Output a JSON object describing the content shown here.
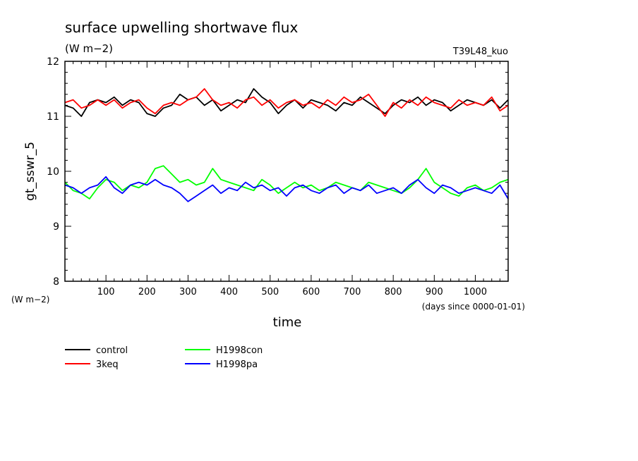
{
  "chart_data": {
    "type": "line",
    "title": "surface upwelling shortwave flux",
    "title_units": "(W m−2)",
    "run_label": "T39L48_kuo",
    "ylabel": "gt_sswr_5",
    "y_unit_label": "(W m−2)",
    "xlabel": "time",
    "x_unit_label": "(days since 0000-01-01)",
    "xlim": [
      0,
      1080
    ],
    "ylim": [
      8,
      12
    ],
    "x_ticks": [
      100,
      200,
      300,
      400,
      500,
      600,
      700,
      800,
      900,
      1000
    ],
    "y_ticks": [
      8,
      9,
      10,
      11,
      12
    ],
    "grid": false,
    "legend_position": "bottom-left",
    "series": [
      {
        "name": "control",
        "color": "#000000",
        "points": [
          [
            0,
            11.2
          ],
          [
            20,
            11.15
          ],
          [
            40,
            11.0
          ],
          [
            60,
            11.25
          ],
          [
            80,
            11.3
          ],
          [
            100,
            11.25
          ],
          [
            120,
            11.35
          ],
          [
            140,
            11.2
          ],
          [
            160,
            11.3
          ],
          [
            180,
            11.25
          ],
          [
            200,
            11.05
          ],
          [
            220,
            11.0
          ],
          [
            240,
            11.15
          ],
          [
            260,
            11.2
          ],
          [
            280,
            11.4
          ],
          [
            300,
            11.3
          ],
          [
            320,
            11.35
          ],
          [
            340,
            11.2
          ],
          [
            360,
            11.3
          ],
          [
            380,
            11.1
          ],
          [
            400,
            11.2
          ],
          [
            420,
            11.3
          ],
          [
            440,
            11.25
          ],
          [
            460,
            11.5
          ],
          [
            480,
            11.35
          ],
          [
            500,
            11.25
          ],
          [
            520,
            11.05
          ],
          [
            540,
            11.2
          ],
          [
            560,
            11.3
          ],
          [
            580,
            11.15
          ],
          [
            600,
            11.3
          ],
          [
            620,
            11.25
          ],
          [
            640,
            11.2
          ],
          [
            660,
            11.1
          ],
          [
            680,
            11.25
          ],
          [
            700,
            11.2
          ],
          [
            720,
            11.35
          ],
          [
            740,
            11.25
          ],
          [
            760,
            11.15
          ],
          [
            780,
            11.05
          ],
          [
            800,
            11.2
          ],
          [
            820,
            11.3
          ],
          [
            840,
            11.25
          ],
          [
            860,
            11.35
          ],
          [
            880,
            11.2
          ],
          [
            900,
            11.3
          ],
          [
            920,
            11.25
          ],
          [
            940,
            11.1
          ],
          [
            960,
            11.2
          ],
          [
            980,
            11.3
          ],
          [
            1000,
            11.25
          ],
          [
            1020,
            11.2
          ],
          [
            1040,
            11.3
          ],
          [
            1060,
            11.15
          ],
          [
            1080,
            11.3
          ]
        ]
      },
      {
        "name": "3keq",
        "color": "#ff0000",
        "points": [
          [
            0,
            11.25
          ],
          [
            20,
            11.3
          ],
          [
            40,
            11.15
          ],
          [
            60,
            11.2
          ],
          [
            80,
            11.3
          ],
          [
            100,
            11.2
          ],
          [
            120,
            11.3
          ],
          [
            140,
            11.15
          ],
          [
            160,
            11.25
          ],
          [
            180,
            11.3
          ],
          [
            200,
            11.15
          ],
          [
            220,
            11.05
          ],
          [
            240,
            11.2
          ],
          [
            260,
            11.25
          ],
          [
            280,
            11.2
          ],
          [
            300,
            11.3
          ],
          [
            320,
            11.35
          ],
          [
            340,
            11.5
          ],
          [
            360,
            11.3
          ],
          [
            380,
            11.2
          ],
          [
            400,
            11.25
          ],
          [
            420,
            11.15
          ],
          [
            440,
            11.3
          ],
          [
            460,
            11.35
          ],
          [
            480,
            11.2
          ],
          [
            500,
            11.3
          ],
          [
            520,
            11.15
          ],
          [
            540,
            11.25
          ],
          [
            560,
            11.3
          ],
          [
            580,
            11.2
          ],
          [
            600,
            11.25
          ],
          [
            620,
            11.15
          ],
          [
            640,
            11.3
          ],
          [
            660,
            11.2
          ],
          [
            680,
            11.35
          ],
          [
            700,
            11.25
          ],
          [
            720,
            11.3
          ],
          [
            740,
            11.4
          ],
          [
            760,
            11.2
          ],
          [
            780,
            11.0
          ],
          [
            800,
            11.25
          ],
          [
            820,
            11.15
          ],
          [
            840,
            11.3
          ],
          [
            860,
            11.2
          ],
          [
            880,
            11.35
          ],
          [
            900,
            11.25
          ],
          [
            920,
            11.2
          ],
          [
            940,
            11.15
          ],
          [
            960,
            11.3
          ],
          [
            980,
            11.2
          ],
          [
            1000,
            11.25
          ],
          [
            1020,
            11.2
          ],
          [
            1040,
            11.35
          ],
          [
            1060,
            11.1
          ],
          [
            1080,
            11.2
          ]
        ]
      },
      {
        "name": "H1998con",
        "color": "#00ff00",
        "points": [
          [
            0,
            9.8
          ],
          [
            20,
            9.65
          ],
          [
            40,
            9.6
          ],
          [
            60,
            9.5
          ],
          [
            80,
            9.7
          ],
          [
            100,
            9.85
          ],
          [
            120,
            9.8
          ],
          [
            140,
            9.65
          ],
          [
            160,
            9.75
          ],
          [
            180,
            9.7
          ],
          [
            200,
            9.8
          ],
          [
            220,
            10.05
          ],
          [
            240,
            10.1
          ],
          [
            260,
            9.95
          ],
          [
            280,
            9.8
          ],
          [
            300,
            9.85
          ],
          [
            320,
            9.75
          ],
          [
            340,
            9.8
          ],
          [
            360,
            10.05
          ],
          [
            380,
            9.85
          ],
          [
            400,
            9.8
          ],
          [
            420,
            9.75
          ],
          [
            440,
            9.7
          ],
          [
            460,
            9.65
          ],
          [
            480,
            9.85
          ],
          [
            500,
            9.75
          ],
          [
            520,
            9.6
          ],
          [
            540,
            9.7
          ],
          [
            560,
            9.8
          ],
          [
            580,
            9.7
          ],
          [
            600,
            9.75
          ],
          [
            620,
            9.65
          ],
          [
            640,
            9.7
          ],
          [
            660,
            9.8
          ],
          [
            680,
            9.75
          ],
          [
            700,
            9.7
          ],
          [
            720,
            9.65
          ],
          [
            740,
            9.8
          ],
          [
            760,
            9.75
          ],
          [
            780,
            9.7
          ],
          [
            800,
            9.65
          ],
          [
            820,
            9.6
          ],
          [
            840,
            9.7
          ],
          [
            860,
            9.85
          ],
          [
            880,
            10.05
          ],
          [
            900,
            9.8
          ],
          [
            920,
            9.7
          ],
          [
            940,
            9.6
          ],
          [
            960,
            9.55
          ],
          [
            980,
            9.7
          ],
          [
            1000,
            9.75
          ],
          [
            1020,
            9.65
          ],
          [
            1040,
            9.7
          ],
          [
            1060,
            9.8
          ],
          [
            1080,
            9.85
          ]
        ]
      },
      {
        "name": "H1998pa",
        "color": "#0000ff",
        "points": [
          [
            0,
            9.75
          ],
          [
            20,
            9.7
          ],
          [
            40,
            9.6
          ],
          [
            60,
            9.7
          ],
          [
            80,
            9.75
          ],
          [
            100,
            9.9
          ],
          [
            120,
            9.7
          ],
          [
            140,
            9.6
          ],
          [
            160,
            9.75
          ],
          [
            180,
            9.8
          ],
          [
            200,
            9.75
          ],
          [
            220,
            9.85
          ],
          [
            240,
            9.75
          ],
          [
            260,
            9.7
          ],
          [
            280,
            9.6
          ],
          [
            300,
            9.45
          ],
          [
            320,
            9.55
          ],
          [
            340,
            9.65
          ],
          [
            360,
            9.75
          ],
          [
            380,
            9.6
          ],
          [
            400,
            9.7
          ],
          [
            420,
            9.65
          ],
          [
            440,
            9.8
          ],
          [
            460,
            9.7
          ],
          [
            480,
            9.75
          ],
          [
            500,
            9.65
          ],
          [
            520,
            9.7
          ],
          [
            540,
            9.55
          ],
          [
            560,
            9.7
          ],
          [
            580,
            9.75
          ],
          [
            600,
            9.65
          ],
          [
            620,
            9.6
          ],
          [
            640,
            9.7
          ],
          [
            660,
            9.75
          ],
          [
            680,
            9.6
          ],
          [
            700,
            9.7
          ],
          [
            720,
            9.65
          ],
          [
            740,
            9.75
          ],
          [
            760,
            9.6
          ],
          [
            780,
            9.65
          ],
          [
            800,
            9.7
          ],
          [
            820,
            9.6
          ],
          [
            840,
            9.75
          ],
          [
            860,
            9.85
          ],
          [
            880,
            9.7
          ],
          [
            900,
            9.6
          ],
          [
            920,
            9.75
          ],
          [
            940,
            9.7
          ],
          [
            960,
            9.6
          ],
          [
            980,
            9.65
          ],
          [
            1000,
            9.7
          ],
          [
            1020,
            9.65
          ],
          [
            1040,
            9.6
          ],
          [
            1060,
            9.75
          ],
          [
            1080,
            9.5
          ]
        ]
      }
    ]
  }
}
